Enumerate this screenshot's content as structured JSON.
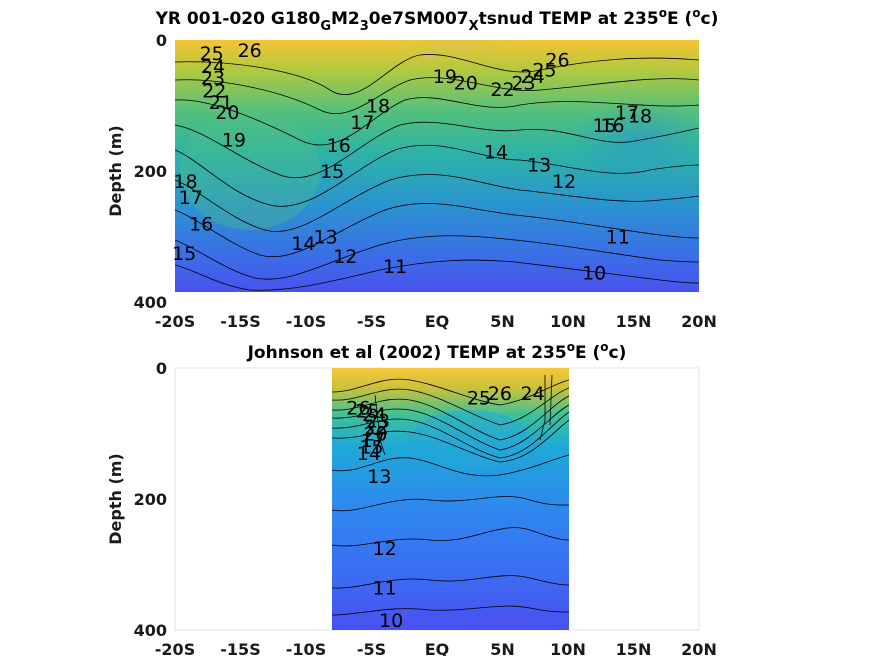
{
  "chart_data": [
    {
      "type": "heatmap",
      "title_parts": [
        "YR 001-020 G180",
        "G",
        "M2",
        "3",
        "0e7SM007",
        "X",
        "tsnud TEMP at 235",
        "o",
        "E (",
        "o",
        "c)"
      ],
      "ylabel": "Depth (m)",
      "x_ticks": [
        "-20S",
        "-15S",
        "-10S",
        "-5S",
        "EQ",
        "5N",
        "10N",
        "15N",
        "20N"
      ],
      "y_ticks": [
        "0",
        "200",
        "400"
      ],
      "xlim": [
        -20,
        20
      ],
      "ylim": [
        400,
        0
      ],
      "data_extent": {
        "x": [
          -20,
          20
        ],
        "y": [
          0,
          385
        ]
      },
      "grid": false,
      "contour_labels": [
        {
          "text": "26",
          "x": -14.3,
          "y": 15
        },
        {
          "text": "25",
          "x": -17.2,
          "y": 20
        },
        {
          "text": "24",
          "x": -17.1,
          "y": 40
        },
        {
          "text": "23",
          "x": -17.1,
          "y": 57
        },
        {
          "text": "22",
          "x": -17.0,
          "y": 77
        },
        {
          "text": "21",
          "x": -16.5,
          "y": 95
        },
        {
          "text": "20",
          "x": -16.0,
          "y": 110
        },
        {
          "text": "19",
          "x": -15.5,
          "y": 152
        },
        {
          "text": "18",
          "x": -19.2,
          "y": 215
        },
        {
          "text": "17",
          "x": -18.8,
          "y": 240
        },
        {
          "text": "16",
          "x": -18.0,
          "y": 280
        },
        {
          "text": "15",
          "x": -19.3,
          "y": 325
        },
        {
          "text": "18",
          "x": -4.5,
          "y": 100
        },
        {
          "text": "17",
          "x": -5.7,
          "y": 125
        },
        {
          "text": "16",
          "x": -7.5,
          "y": 160
        },
        {
          "text": "15",
          "x": -8.0,
          "y": 200
        },
        {
          "text": "14",
          "x": -10.2,
          "y": 310
        },
        {
          "text": "13",
          "x": -8.5,
          "y": 300
        },
        {
          "text": "12",
          "x": -7.0,
          "y": 330
        },
        {
          "text": "11",
          "x": -3.2,
          "y": 345
        },
        {
          "text": "19",
          "x": 0.6,
          "y": 55
        },
        {
          "text": "20",
          "x": 2.2,
          "y": 65
        },
        {
          "text": "22",
          "x": 5.0,
          "y": 75
        },
        {
          "text": "23",
          "x": 6.6,
          "y": 65
        },
        {
          "text": "24",
          "x": 7.3,
          "y": 55
        },
        {
          "text": "25",
          "x": 8.2,
          "y": 45
        },
        {
          "text": "26",
          "x": 9.2,
          "y": 30
        },
        {
          "text": "18",
          "x": 15.5,
          "y": 115
        },
        {
          "text": "17",
          "x": 14.5,
          "y": 110
        },
        {
          "text": "16",
          "x": 13.4,
          "y": 130
        },
        {
          "text": "15",
          "x": 12.8,
          "y": 130
        },
        {
          "text": "14",
          "x": 4.5,
          "y": 170
        },
        {
          "text": "13",
          "x": 7.8,
          "y": 190
        },
        {
          "text": "12",
          "x": 9.7,
          "y": 215
        },
        {
          "text": "11",
          "x": 13.8,
          "y": 300
        },
        {
          "text": "10",
          "x": 12.0,
          "y": 355
        }
      ]
    },
    {
      "type": "heatmap",
      "title_parts": [
        "Johnson et al (2002) TEMP at 235",
        "o",
        "E (",
        "o",
        "c)"
      ],
      "ylabel": "Depth (m)",
      "x_ticks": [
        "-20S",
        "-15S",
        "-10S",
        "-5S",
        "EQ",
        "5N",
        "10N",
        "15N",
        "20N"
      ],
      "y_ticks": [
        "0",
        "200",
        "400"
      ],
      "xlim": [
        -20,
        20
      ],
      "ylim": [
        400,
        0
      ],
      "data_extent": {
        "x": [
          -8,
          10
        ],
        "y": [
          0,
          400
        ]
      },
      "grid": false,
      "contour_labels": [
        {
          "text": "26",
          "x": -6.0,
          "y": 60
        },
        {
          "text": "25",
          "x": -5.3,
          "y": 65
        },
        {
          "text": "24",
          "x": -4.8,
          "y": 70
        },
        {
          "text": "23",
          "x": -4.5,
          "y": 80
        },
        {
          "text": "22",
          "x": -4.6,
          "y": 90
        },
        {
          "text": "20",
          "x": -4.7,
          "y": 100
        },
        {
          "text": "17",
          "x": -4.9,
          "y": 110
        },
        {
          "text": "15",
          "x": -5.0,
          "y": 120
        },
        {
          "text": "14",
          "x": -5.2,
          "y": 130
        },
        {
          "text": "13",
          "x": -4.4,
          "y": 165
        },
        {
          "text": "26",
          "x": 4.8,
          "y": 38
        },
        {
          "text": "25",
          "x": 3.2,
          "y": 45
        },
        {
          "text": "24",
          "x": 7.3,
          "y": 38
        },
        {
          "text": "12",
          "x": -4.0,
          "y": 275
        },
        {
          "text": "11",
          "x": -4.0,
          "y": 335
        },
        {
          "text": "10",
          "x": -3.5,
          "y": 385
        }
      ]
    }
  ]
}
